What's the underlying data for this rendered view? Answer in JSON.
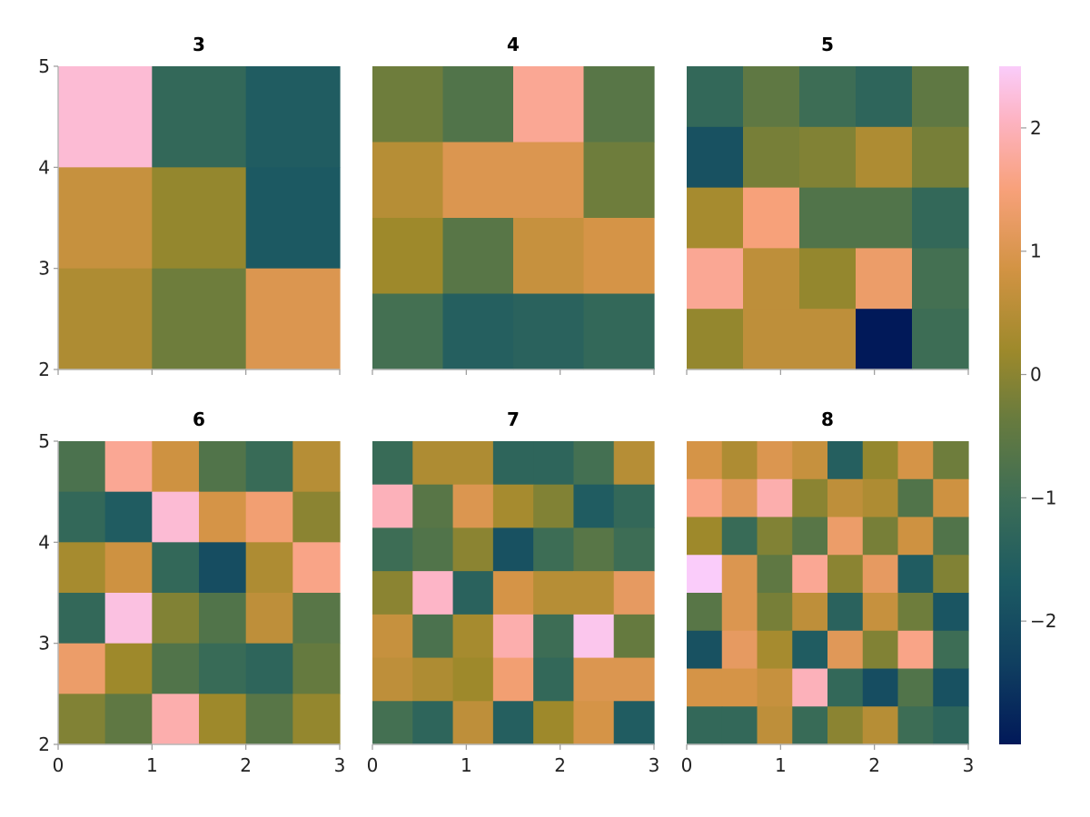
{
  "chart_data": {
    "type": "heatmap",
    "colormap": "batlow",
    "colorbar": {
      "range": [
        -3,
        2.5
      ],
      "ticks": [
        2,
        1,
        0,
        -1,
        -2
      ],
      "tick_labels": [
        "2",
        "1",
        "0",
        "−1",
        "−2"
      ]
    },
    "axes": {
      "xlim": [
        0,
        3
      ],
      "ylim": [
        2,
        5
      ],
      "x_ticks": [
        "0",
        "1",
        "2",
        "3"
      ],
      "y_ticks": [
        "2",
        "3",
        "4",
        "5"
      ]
    },
    "panels": [
      {
        "title": "3",
        "values": [
          [
            2.2,
            -1.2,
            -1.6
          ],
          [
            0.7,
            0.1,
            -1.7
          ],
          [
            0.4,
            -0.3,
            1.0
          ]
        ]
      },
      {
        "title": "4",
        "values": [
          [
            -0.3,
            -0.7,
            1.7,
            -0.6
          ],
          [
            0.5,
            1.0,
            1.0,
            -0.3
          ],
          [
            0.2,
            -0.6,
            0.7,
            0.9
          ],
          [
            -0.9,
            -1.5,
            -1.4,
            -1.2
          ]
        ]
      },
      {
        "title": "5",
        "values": [
          [
            -1.2,
            -0.5,
            -1.0,
            -1.3,
            -0.5
          ],
          [
            -1.9,
            -0.2,
            -0.1,
            0.4,
            -0.2
          ],
          [
            0.3,
            1.5,
            -0.7,
            -0.7,
            -1.2
          ],
          [
            1.7,
            0.6,
            0.1,
            1.3,
            -0.9
          ],
          [
            0.1,
            0.6,
            0.6,
            -3.0,
            -1.0
          ]
        ]
      },
      {
        "title": "6",
        "values": [
          [
            -0.8,
            1.7,
            0.8,
            -0.7,
            -1.1,
            0.5
          ],
          [
            -1.2,
            -1.6,
            2.2,
            0.9,
            1.4,
            0.0
          ],
          [
            0.3,
            0.8,
            -1.2,
            -2.0,
            0.4,
            1.6
          ],
          [
            -1.2,
            2.3,
            -0.1,
            -0.7,
            0.6,
            -0.6
          ],
          [
            1.3,
            0.2,
            -0.7,
            -1.1,
            -1.3,
            -0.4
          ],
          [
            -0.1,
            -0.5,
            1.9,
            0.2,
            -0.6,
            0.1
          ]
        ]
      },
      {
        "title": "7",
        "values": [
          [
            -1.1,
            0.4,
            0.4,
            -1.3,
            -1.3,
            -0.9,
            0.5
          ],
          [
            2.0,
            -0.6,
            1.0,
            0.3,
            -0.1,
            -1.6,
            -1.2
          ],
          [
            -1.0,
            -0.7,
            0.0,
            -1.9,
            -1.0,
            -0.6,
            -1.0
          ],
          [
            0.0,
            2.1,
            -1.4,
            0.9,
            0.5,
            0.5,
            1.2
          ],
          [
            0.7,
            -0.8,
            0.3,
            1.9,
            -1.0,
            2.4,
            -0.4
          ],
          [
            0.6,
            0.4,
            0.2,
            1.4,
            -1.2,
            1.0,
            1.0
          ],
          [
            -0.9,
            -1.3,
            0.6,
            -1.5,
            0.2,
            0.9,
            -1.6
          ]
        ]
      },
      {
        "title": "8",
        "values": [
          [
            0.9,
            0.4,
            1.0,
            0.7,
            -1.5,
            0.1,
            0.9,
            -0.3
          ],
          [
            1.6,
            1.1,
            1.9,
            0.0,
            0.6,
            0.4,
            -0.7,
            0.8
          ],
          [
            0.2,
            -1.1,
            -0.1,
            -0.6,
            1.3,
            -0.2,
            0.8,
            -0.7
          ],
          [
            2.5,
            1.0,
            -0.5,
            1.7,
            0.0,
            1.2,
            -1.6,
            -0.1
          ],
          [
            -0.6,
            1.0,
            -0.2,
            0.6,
            -1.4,
            0.7,
            -0.3,
            -1.8
          ],
          [
            -1.9,
            1.2,
            0.3,
            -1.6,
            1.1,
            -0.1,
            1.6,
            -1.0
          ],
          [
            0.9,
            0.9,
            0.7,
            2.0,
            -1.2,
            -2.0,
            -0.7,
            -1.9
          ],
          [
            -1.2,
            -1.2,
            0.6,
            -1.1,
            0.0,
            0.5,
            -1.0,
            -1.3
          ]
        ]
      }
    ]
  }
}
